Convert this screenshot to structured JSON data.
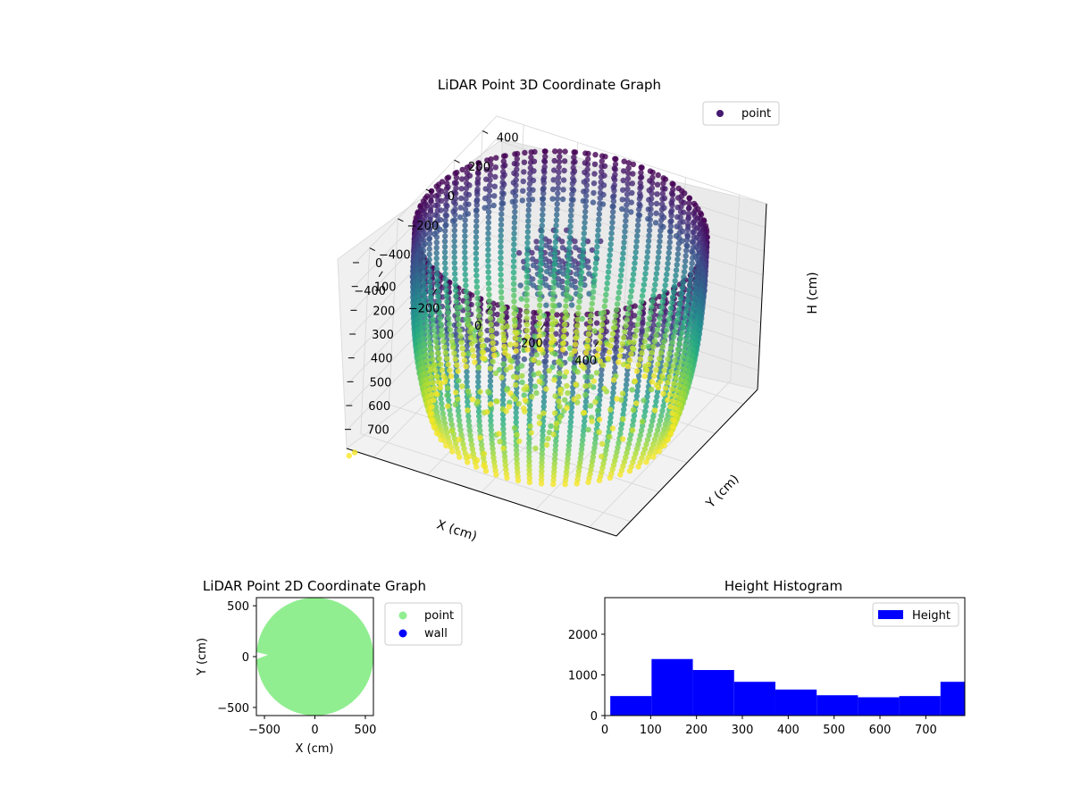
{
  "chart_data": [
    {
      "type": "scatter",
      "title": "LiDAR Point 3D Coordinate Graph",
      "xlabel": "X (cm)",
      "ylabel": "Y (cm)",
      "zlabel": "H (cm)",
      "xticks": [
        "−400",
        "−200",
        "0",
        "200",
        "400"
      ],
      "yticks": [
        "−400",
        "−200",
        "0",
        "200",
        "400"
      ],
      "zticks": [
        "0",
        "100",
        "200",
        "300",
        "400",
        "500",
        "600",
        "700"
      ],
      "xlim": [
        -500,
        500
      ],
      "ylim": [
        -500,
        500
      ],
      "zlim": [
        0,
        780
      ],
      "z_axis_inverted": true,
      "grid": true,
      "legend": {
        "position": "top-right",
        "entries": [
          {
            "label": "point",
            "color": "#46196e"
          }
        ]
      },
      "colormap": "viridis",
      "series": [
        {
          "name": "point",
          "shape": "cylindrical wall scan",
          "radius_approx": 480,
          "height_range": [
            0,
            780
          ]
        }
      ]
    },
    {
      "type": "scatter",
      "title": "LiDAR Point 2D Coordinate Graph",
      "xlabel": "X (cm)",
      "ylabel": "Y (cm)",
      "xticks": [
        "−500",
        "0",
        "500"
      ],
      "yticks": [
        "−500",
        "0",
        "500"
      ],
      "xlim": [
        -580,
        580
      ],
      "ylim": [
        -580,
        580
      ],
      "legend": {
        "position": "outside-right",
        "entries": [
          {
            "label": "point",
            "color": "#90ee90"
          },
          {
            "label": "wall",
            "color": "#0000ff"
          }
        ]
      },
      "series": [
        {
          "name": "point",
          "color": "#90ee90",
          "extent_x": [
            -580,
            580
          ],
          "extent_y": [
            -580,
            580
          ]
        },
        {
          "name": "wall",
          "color": "#0000ff",
          "values": []
        }
      ]
    },
    {
      "type": "bar",
      "title": "Height Histogram",
      "xlabel": "",
      "ylabel": "",
      "xticks": [
        "0",
        "100",
        "200",
        "300",
        "400",
        "500",
        "600",
        "700"
      ],
      "yticks": [
        "0",
        "1000",
        "2000"
      ],
      "xlim": [
        0,
        785
      ],
      "ylim": [
        0,
        2900
      ],
      "bar_color": "#0000ff",
      "legend": {
        "position": "top-right",
        "entries": [
          {
            "label": "Height",
            "color": "#0000ff"
          }
        ]
      },
      "bin_edges": [
        12,
        102,
        192,
        282,
        372,
        462,
        552,
        642,
        732,
        785
      ],
      "values": [
        480,
        1390,
        1120,
        830,
        640,
        500,
        450,
        480,
        830
      ]
    }
  ]
}
